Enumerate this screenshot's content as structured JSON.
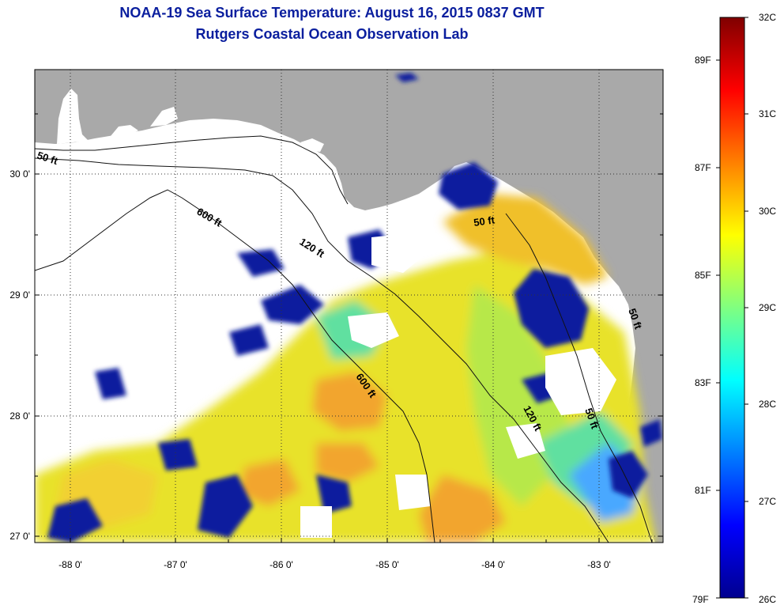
{
  "header": {
    "title_line1": "NOAA-19 Sea Surface Temperature:  August 16, 2015 0837 GMT",
    "title_line2": "Rutgers Coastal Ocean Observation Lab"
  },
  "map": {
    "region": "Eastern Gulf of Mexico / West Florida Shelf",
    "lon_range": [
      -88.35,
      -82.45
    ],
    "lat_range": [
      26.97,
      30.85
    ],
    "lon_ticks": [
      {
        "value": -88,
        "label": "-88 0'"
      },
      {
        "value": -87,
        "label": "-87 0'"
      },
      {
        "value": -86,
        "label": "-86 0'"
      },
      {
        "value": -85,
        "label": "-85 0'"
      },
      {
        "value": -84,
        "label": "-84 0'"
      },
      {
        "value": -83,
        "label": "-83 0'"
      }
    ],
    "lat_ticks": [
      {
        "value": 30,
        "label": "30 0'"
      },
      {
        "value": 29,
        "label": "29 0'"
      },
      {
        "value": 28,
        "label": "28 0'"
      },
      {
        "value": 27,
        "label": "27 0'"
      }
    ],
    "grid": "dotted",
    "land_color": "#a9a9a9",
    "no_data_color": "#ffffff",
    "contours": [
      {
        "label": "50 ft"
      },
      {
        "label": "600 ft"
      },
      {
        "label": "120 ft"
      },
      {
        "label": "50 ft"
      },
      {
        "label": "600 ft"
      },
      {
        "label": "120 ft"
      },
      {
        "label": "50 ft"
      },
      {
        "label": "50 ft"
      }
    ]
  },
  "colorbar": {
    "colors": [
      "#00008f",
      "#0000ff",
      "#0080ff",
      "#00ffff",
      "#80ff80",
      "#ffff00",
      "#ff8000",
      "#ff0000",
      "#800000"
    ],
    "celsius_labels": [
      {
        "value": 32,
        "label": "32C"
      },
      {
        "value": 31,
        "label": "31C"
      },
      {
        "value": 30,
        "label": "30C"
      },
      {
        "value": 29,
        "label": "29C"
      },
      {
        "value": 28,
        "label": "28C"
      },
      {
        "value": 27,
        "label": "27C"
      },
      {
        "value": 26,
        "label": "26C"
      }
    ],
    "fahrenheit_labels": [
      {
        "value": 89,
        "label": "89F"
      },
      {
        "value": 87,
        "label": "87F"
      },
      {
        "value": 85,
        "label": "85F"
      },
      {
        "value": 83,
        "label": "83F"
      },
      {
        "value": 81,
        "label": "81F"
      },
      {
        "value": 79,
        "label": "79F"
      }
    ]
  }
}
